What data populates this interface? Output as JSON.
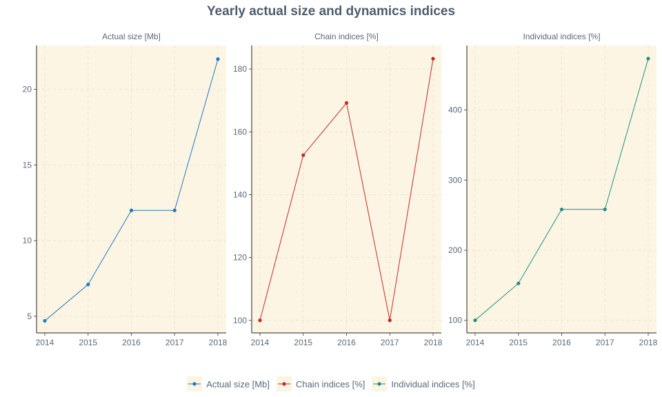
{
  "title": "Yearly actual size and dynamics indices",
  "chart_data": [
    {
      "type": "line",
      "title": "Actual size [Mb]",
      "color": "#1f78c8",
      "x": [
        2014,
        2015,
        2016,
        2017,
        2018
      ],
      "values": [
        4.7,
        7.1,
        12.0,
        12.0,
        22.0
      ],
      "xticks": [
        "2014",
        "2015",
        "2016",
        "2017",
        "2018"
      ],
      "yticks": [
        5,
        10,
        15,
        20
      ],
      "ylim": [
        3.9,
        22.9
      ],
      "grid": true
    },
    {
      "type": "line",
      "title": "Chain indices [%]",
      "color": "#c62828",
      "x": [
        2014,
        2015,
        2016,
        2017,
        2018
      ],
      "values": [
        100.0,
        152.6,
        169.2,
        100.0,
        183.3
      ],
      "xticks": [
        "2014",
        "2015",
        "2016",
        "2017",
        "2018"
      ],
      "yticks": [
        100,
        120,
        140,
        160,
        180
      ],
      "ylim": [
        96,
        187.5
      ],
      "grid": true
    },
    {
      "type": "line",
      "title": "Individual indices [%]",
      "color": "#1f8f7e",
      "x": [
        2014,
        2015,
        2016,
        2017,
        2018
      ],
      "values": [
        100.0,
        152.6,
        258.2,
        258.2,
        473.3
      ],
      "xticks": [
        "2014",
        "2015",
        "2016",
        "2017",
        "2018"
      ],
      "yticks": [
        100,
        200,
        300,
        400
      ],
      "ylim": [
        82,
        492
      ],
      "grid": true
    }
  ],
  "legend": {
    "position": "bottom",
    "items": [
      {
        "label": "Actual size [Mb]",
        "color": "#1f78c8"
      },
      {
        "label": "Chain indices [%]",
        "color": "#c62828"
      },
      {
        "label": "Individual indices [%]",
        "color": "#1f8f7e"
      }
    ]
  }
}
